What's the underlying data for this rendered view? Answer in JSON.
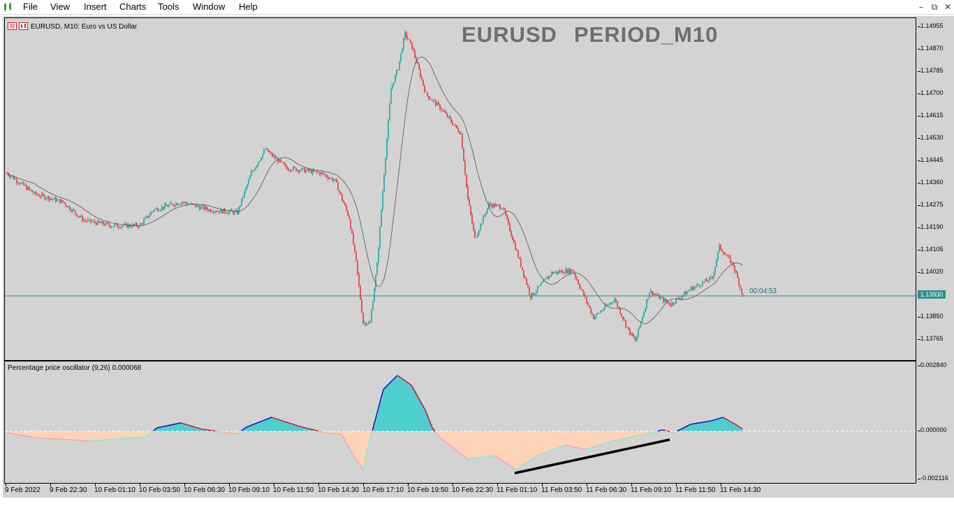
{
  "menubar": {
    "items": [
      "File",
      "View",
      "Insert",
      "Charts",
      "Tools",
      "Window",
      "Help"
    ],
    "window_controls": [
      "minimize",
      "restore",
      "close"
    ]
  },
  "chart": {
    "label": "EURUSD, M10:  Euro vs US Dollar",
    "title_symbol": "EURUSD",
    "title_period": "PERIOD_M10",
    "timer": "00:04:53",
    "current_price": "1.13930",
    "price_ticks": [
      "1.14955",
      "1.14870",
      "1.14785",
      "1.14700",
      "1.14615",
      "1.14530",
      "1.14445",
      "1.14360",
      "1.14275",
      "1.14190",
      "1.14105",
      "1.14020",
      "1.13850",
      "1.13765"
    ],
    "candle_up_color": "#3cb3a8",
    "candle_down_color": "#e0575c",
    "ma_color": "#555555",
    "price_line_color": "#2d8f8b"
  },
  "oscillator": {
    "label": "Percentage price oscillator (9,26) 0.000068",
    "ticks": [
      "0.002840",
      "0.000000",
      "-0.002116"
    ],
    "positive_fill": "#4ecfcf",
    "negative_fill": "#fdd3b7",
    "rising_line": "#1616b8",
    "falling_line": "#d11a3a",
    "divergence_line_color": "#000000"
  },
  "time_axis": [
    "9 Feb 2022",
    "9 Feb 22:30",
    "10 Feb 01:10",
    "10 Feb 03:50",
    "10 Feb 06:30",
    "10 Feb 09:10",
    "10 Feb 11:50",
    "10 Feb 14:30",
    "10 Feb 17:10",
    "10 Feb 19:50",
    "10 Feb 22:30",
    "11 Feb 01:10",
    "11 Feb 03:50",
    "11 Feb 06:30",
    "11 Feb 09:10",
    "11 Feb 11:50",
    "11 Feb 14:30"
  ]
}
